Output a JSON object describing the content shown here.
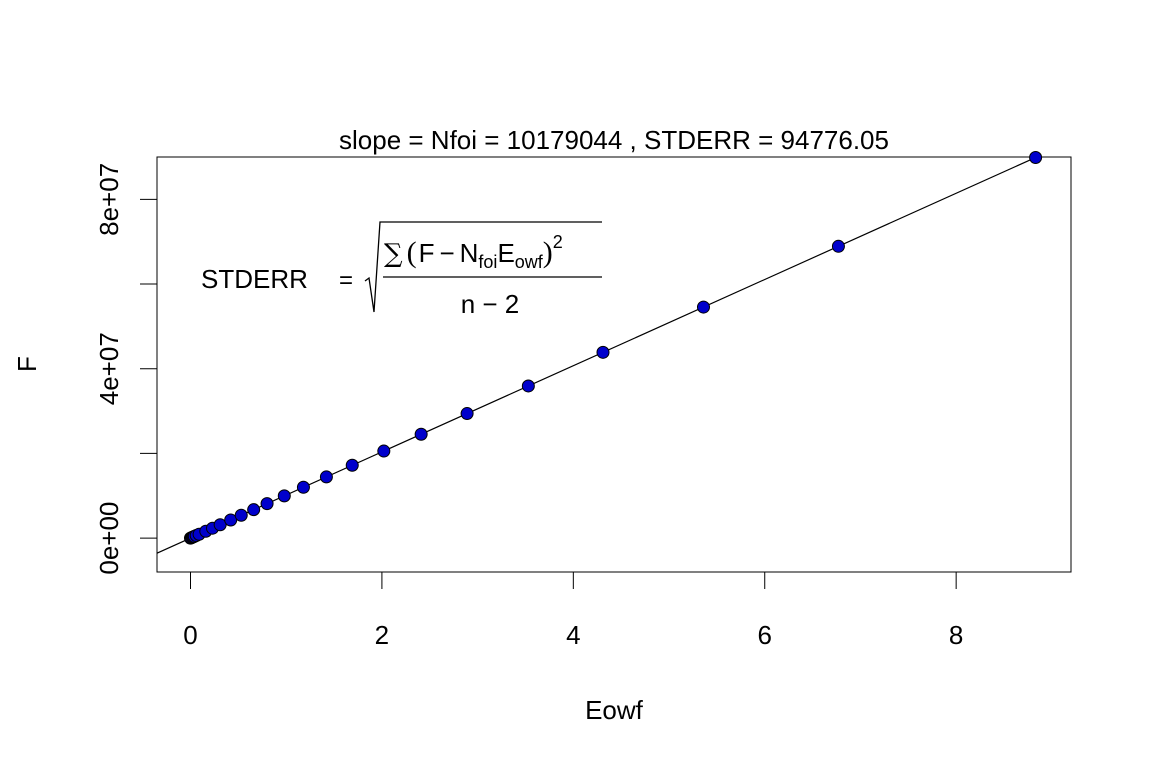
{
  "chart_data": {
    "type": "scatter",
    "title": "slope = Nfoi =  10179044  , STDERR =  94776.05",
    "xlabel": "Eowf",
    "ylabel": "F",
    "xlim": [
      -0.35,
      9.2
    ],
    "ylim": [
      -8000000,
      90000000
    ],
    "x_ticks": [
      0,
      2,
      4,
      6,
      8
    ],
    "x_tick_labels": [
      "0",
      "2",
      "4",
      "6",
      "8"
    ],
    "y_ticks": [
      0,
      20000000,
      40000000,
      60000000,
      80000000
    ],
    "y_tick_labels": [
      "0e+00",
      "",
      "4e+07",
      "",
      "8e+07"
    ],
    "grid": false,
    "regression_line": {
      "slope": 10179044,
      "intercept": 0
    },
    "point_fill": "#0000cc",
    "point_stroke": "#000000",
    "series": [
      {
        "x": [
          0.0,
          0.01,
          0.02,
          0.03,
          0.04,
          0.06,
          0.09,
          0.16,
          0.23,
          0.31,
          0.42,
          0.53,
          0.66,
          0.8,
          0.98,
          1.18,
          1.42,
          1.69,
          2.02,
          2.41,
          2.89,
          3.53,
          4.31,
          5.36,
          6.77,
          8.83
        ],
        "y": [
          0,
          101800,
          203600,
          305400,
          407200,
          610700,
          916100,
          1628600,
          2341200,
          3155500,
          4275200,
          5394900,
          6718200,
          8143200,
          9975500,
          12011300,
          14454200,
          17202700,
          20561700,
          24531300,
          29417500,
          35932000,
          43871700,
          54560500,
          68912200,
          89880000
        ]
      }
    ],
    "annotation": {
      "lhs": "STDERR",
      "equals": "=",
      "numerator": {
        "sum": "∑",
        "open": "(",
        "a": "F",
        "minus": "−",
        "b": "N",
        "b_sub": "foi",
        "c": "E",
        "c_sub": "owf",
        "close": ")",
        "power": "2"
      },
      "denominator": "n − 2"
    }
  }
}
